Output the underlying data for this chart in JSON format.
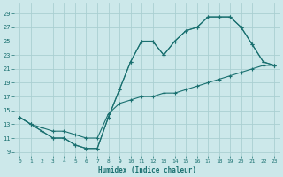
{
  "xlabel": "Humidex (Indice chaleur)",
  "bg_color": "#cce8ea",
  "grid_color": "#aacfd2",
  "line_color": "#1a7070",
  "xlim": [
    -0.5,
    23.5
  ],
  "ylim": [
    8.5,
    30.5
  ],
  "xticks": [
    0,
    1,
    2,
    3,
    4,
    5,
    6,
    7,
    8,
    9,
    10,
    11,
    12,
    13,
    14,
    15,
    16,
    17,
    18,
    19,
    20,
    21,
    22,
    23
  ],
  "yticks": [
    9,
    11,
    13,
    15,
    17,
    19,
    21,
    23,
    25,
    27,
    29
  ],
  "upper_x": [
    0,
    1,
    2,
    3,
    4,
    5,
    6,
    7,
    8,
    9,
    10,
    11,
    12,
    13,
    14,
    15,
    16,
    17,
    18,
    19,
    20,
    21,
    22,
    23
  ],
  "upper_y": [
    14,
    13,
    12,
    11,
    11,
    10,
    9.5,
    9.5,
    14,
    18,
    22,
    25,
    25,
    23,
    25,
    26.5,
    27,
    28.5,
    28.5,
    28.5,
    27,
    24.5,
    22,
    21.5
  ],
  "mid_x": [
    0,
    1,
    2,
    3,
    4,
    5,
    6,
    7,
    8,
    9,
    10,
    11,
    12,
    13,
    14,
    15,
    16,
    17,
    18,
    19,
    20,
    21,
    22,
    23
  ],
  "mid_y": [
    14,
    13,
    12,
    11,
    11,
    10,
    9.5,
    9.5,
    14,
    18,
    22,
    25,
    25,
    23,
    25,
    26.5,
    27,
    28.5,
    28.5,
    28.5,
    27,
    24.5,
    22,
    21.5
  ],
  "lower_x": [
    0,
    1,
    2,
    3,
    4,
    5,
    6,
    7,
    8,
    9,
    10,
    11,
    12,
    13,
    14,
    15,
    16,
    17,
    18,
    19,
    20,
    21,
    22,
    23
  ],
  "lower_y": [
    14,
    13,
    12.5,
    12,
    12,
    11.5,
    11,
    11,
    14.5,
    16,
    16.5,
    17,
    17,
    17.5,
    17.5,
    18,
    18.5,
    19,
    19.5,
    20,
    20.5,
    21,
    21.5,
    21.5
  ]
}
